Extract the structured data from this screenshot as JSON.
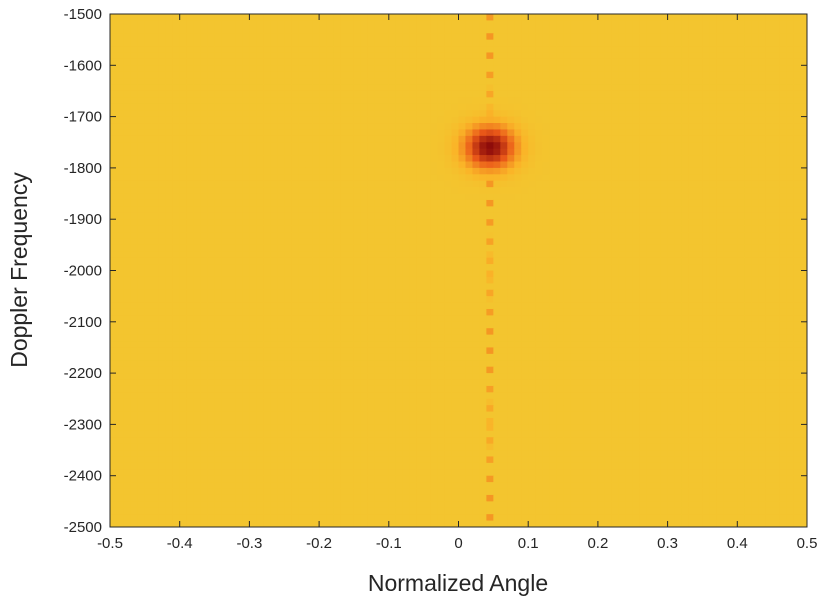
{
  "chart_data": {
    "type": "heatmap",
    "title": "",
    "xlabel": "Normalized Angle",
    "ylabel": "Doppler Frequency",
    "xlim": [
      -0.5,
      0.5
    ],
    "ylim": [
      -2500,
      -1500
    ],
    "y_direction": "reversed",
    "x_ticks": [
      "-0.5",
      "-0.4",
      "-0.3",
      "-0.2",
      "-0.1",
      "0",
      "0.1",
      "0.2",
      "0.3",
      "0.4",
      "0.5"
    ],
    "y_ticks": [
      "-1500",
      "-1600",
      "-1700",
      "-1800",
      "-1900",
      "-2000",
      "-2100",
      "-2200",
      "-2300",
      "-2400",
      "-2500"
    ],
    "grid": false,
    "colormap": "parula-like (blue → cyan → yellow → orange → dark red)",
    "peak": {
      "x": 0.045,
      "y": -1760
    },
    "ridges": [
      {
        "orientation": "vertical",
        "x": 0.045
      },
      {
        "orientation": "horizontal",
        "y": -1760
      }
    ],
    "background": "noise floor (cyan/yellow speckle)"
  }
}
